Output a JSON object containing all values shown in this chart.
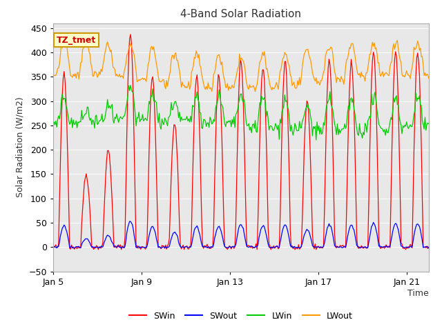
{
  "title": "4-Band Solar Radiation",
  "xlabel": "Time",
  "ylabel": "Solar Radiation (W/m2)",
  "ylim": [
    -50,
    460
  ],
  "yticks": [
    -50,
    0,
    50,
    100,
    150,
    200,
    250,
    300,
    350,
    400,
    450
  ],
  "x_tick_labels": [
    "Jan 5",
    "Jan 9",
    "Jan 13",
    "Jan 17",
    "Jan 21"
  ],
  "x_tick_positions": [
    0,
    4,
    8,
    12,
    16
  ],
  "annotation": "TZ_tmet",
  "annotation_color": "#cc0000",
  "annotation_bg": "#ffffcc",
  "annotation_border": "#cc9900",
  "legend_entries": [
    "SWin",
    "SWout",
    "LWin",
    "LWout"
  ],
  "line_colors": [
    "#ff0000",
    "#0000ff",
    "#00cc00",
    "#ff9900"
  ],
  "fig_bg": "#ffffff",
  "plot_bg": "#e8e8e8",
  "n_days": 17
}
